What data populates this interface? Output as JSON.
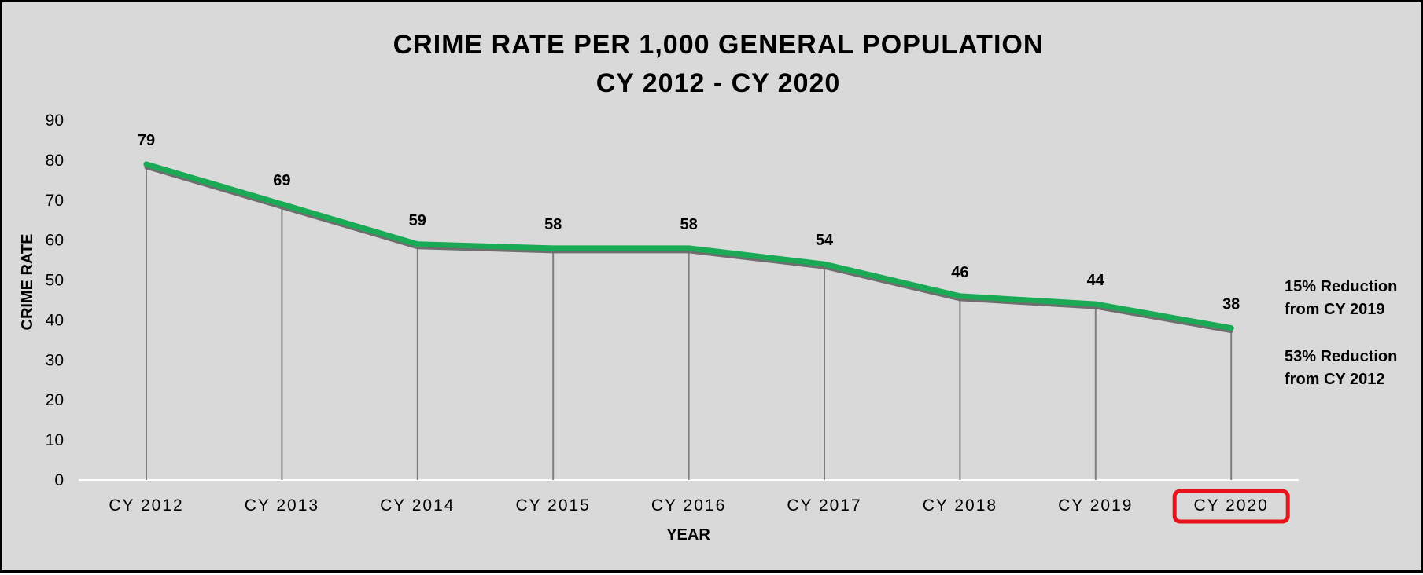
{
  "chart_data": {
    "type": "line",
    "title": [
      "CRIME RATE PER 1,000 GENERAL POPULATION",
      "CY 2012 - CY 2020"
    ],
    "xlabel": "YEAR",
    "ylabel": "CRIME RATE",
    "ylim": [
      0,
      90
    ],
    "yticks": [
      0,
      10,
      20,
      30,
      40,
      50,
      60,
      70,
      80,
      90
    ],
    "categories": [
      "CY 2012",
      "CY 2013",
      "CY 2014",
      "CY 2015",
      "CY 2016",
      "CY 2017",
      "CY 2018",
      "CY 2019",
      "CY 2020"
    ],
    "series": [
      {
        "values": [
          79,
          69,
          59,
          58,
          58,
          54,
          46,
          44,
          38
        ]
      }
    ],
    "line_color": "#1aaa55",
    "shadow_color": "#6e6e6e",
    "drop_lines": true,
    "grid": false,
    "highlighted_category": "CY 2020",
    "highlight_color": "#e8141b",
    "annotations": [
      [
        "15% Reduction",
        "from CY 2019"
      ],
      [
        "53% Reduction",
        "from CY 2012"
      ]
    ]
  }
}
